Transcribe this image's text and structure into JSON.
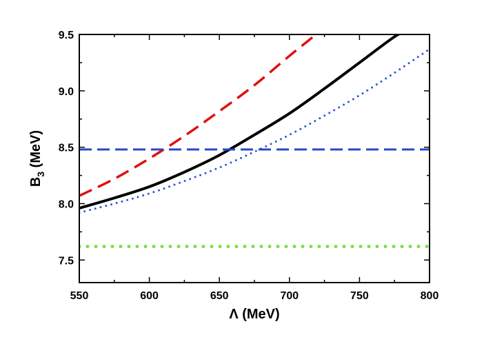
{
  "chart_data": {
    "type": "line",
    "xlabel": "Λ (MeV)",
    "ylabel": {
      "base": "B",
      "sub": "3",
      "rest": " (MeV)"
    },
    "xlim": [
      550,
      800
    ],
    "ylim": [
      7.3,
      9.5
    ],
    "xticks": [
      550,
      600,
      650,
      700,
      750,
      800
    ],
    "yticks": [
      7.5,
      8.0,
      8.5,
      9.0,
      9.5
    ],
    "xtick_labels": [
      "550",
      "600",
      "650",
      "700",
      "750",
      "800"
    ],
    "ytick_labels": [
      "7.5",
      "8.0",
      "8.5",
      "9.0",
      "9.5"
    ],
    "grid": false,
    "series": [
      {
        "style": "solid",
        "color": "#000000",
        "x": [
          550,
          575,
          600,
          625,
          650,
          675,
          700,
          725,
          750,
          775,
          785
        ],
        "y": [
          7.96,
          8.05,
          8.15,
          8.28,
          8.43,
          8.61,
          8.8,
          9.02,
          9.25,
          9.48,
          9.54
        ]
      },
      {
        "style": "dashed",
        "color": "#e01010",
        "x": [
          550,
          575,
          600,
          625,
          650,
          675,
          700,
          721
        ],
        "y": [
          8.07,
          8.22,
          8.4,
          8.6,
          8.82,
          9.05,
          9.31,
          9.52
        ]
      },
      {
        "style": "dotted",
        "color": "#2b55d8",
        "x": [
          550,
          575,
          600,
          625,
          650,
          675,
          700,
          725,
          750,
          775,
          800
        ],
        "y": [
          7.92,
          8.0,
          8.09,
          8.2,
          8.32,
          8.46,
          8.61,
          8.78,
          8.96,
          9.16,
          9.37
        ]
      },
      {
        "style": "hline-dashed",
        "color": "#2b45c8",
        "x": [
          550,
          800
        ],
        "y": [
          8.48,
          8.48
        ]
      },
      {
        "style": "hline-dotted",
        "color": "#7ee03a",
        "x": [
          550,
          800
        ],
        "y": [
          7.62,
          7.62
        ]
      }
    ]
  }
}
